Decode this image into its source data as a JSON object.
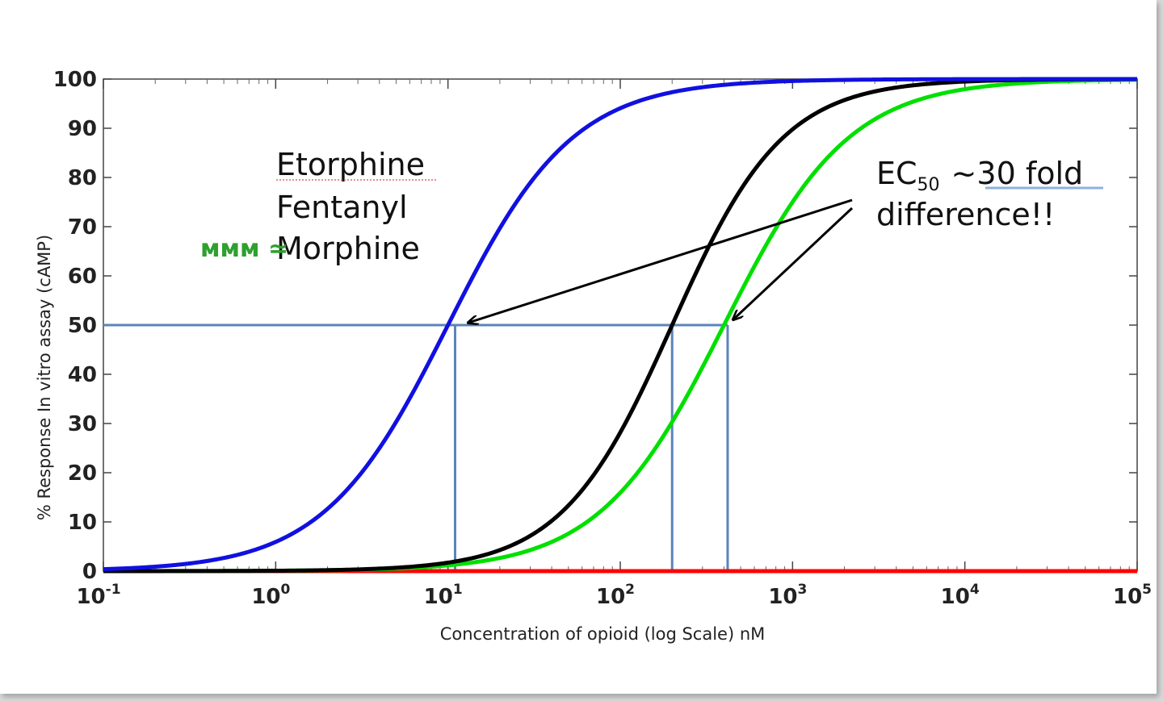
{
  "chart_data": {
    "type": "line",
    "xscale": "log",
    "xlim": [
      0.1,
      100000
    ],
    "ylim": [
      0,
      100
    ],
    "xlabel": "Concentration of opioid (log Scale) nM",
    "ylabel": "% Response In vitro assay (cAMP)",
    "x_ticks": [
      {
        "base": "10",
        "exp": "-1",
        "value": 0.1
      },
      {
        "base": "10",
        "exp": "0",
        "value": 1
      },
      {
        "base": "10",
        "exp": "1",
        "value": 10
      },
      {
        "base": "10",
        "exp": "2",
        "value": 100
      },
      {
        "base": "10",
        "exp": "3",
        "value": 1000
      },
      {
        "base": "10",
        "exp": "4",
        "value": 10000
      },
      {
        "base": "10",
        "exp": "5",
        "value": 100000
      }
    ],
    "y_ticks": [
      "0",
      "10",
      "20",
      "30",
      "40",
      "50",
      "60",
      "70",
      "80",
      "90",
      "100"
    ],
    "grid": false,
    "series": [
      {
        "name": "Etorphine",
        "color": "#1010e0",
        "ec50": 10,
        "hill": 1.2
      },
      {
        "name": "Fentanyl",
        "color": "#000000",
        "ec50": 200,
        "hill": 1.35
      },
      {
        "name": "Morphine",
        "color": "#00e000",
        "ec50": 400,
        "hill": 1.2
      },
      {
        "name": "",
        "color": "#ff0000",
        "constant": 0
      }
    ],
    "guide_lines": {
      "color": "#5b84b8",
      "y": 50,
      "x": [
        11,
        200,
        420
      ]
    },
    "annotations": {
      "legend": [
        "Etorphine",
        "Fentanyl",
        "Morphine"
      ],
      "morphine_mark": "ммм ≃",
      "morphine_mark_color": "#2ea02e",
      "ec50_prefix": "EC",
      "ec50_sub": "50",
      "ec50_suffix": "~30 fold",
      "ec50_line2": "difference!!"
    }
  }
}
